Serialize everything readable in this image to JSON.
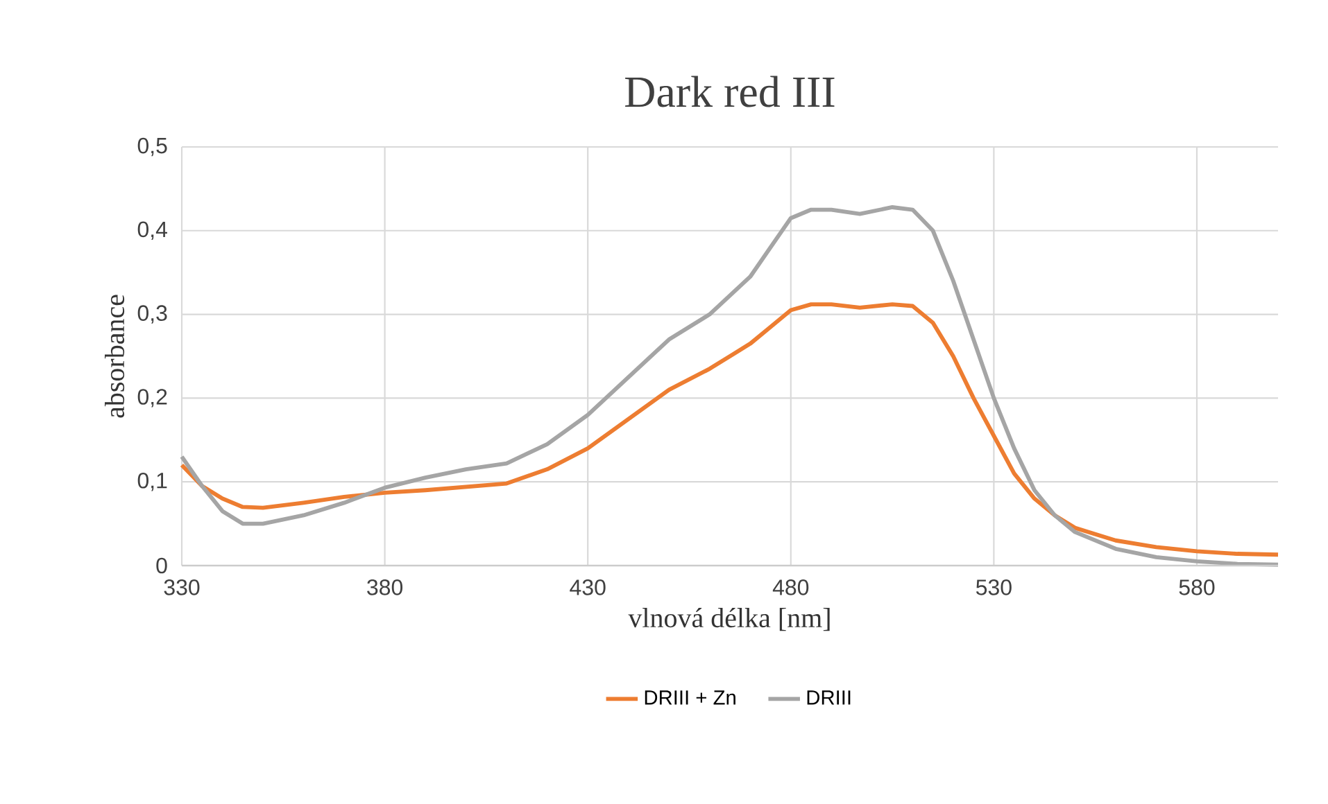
{
  "chart_data": {
    "type": "line",
    "title": "Dark  red  III",
    "xlabel": "vlnová délka [nm]",
    "ylabel": "absorbance",
    "x": [
      330,
      335,
      340,
      345,
      350,
      360,
      370,
      380,
      390,
      400,
      410,
      420,
      430,
      440,
      450,
      460,
      470,
      475,
      480,
      485,
      490,
      497,
      505,
      510,
      515,
      520,
      525,
      530,
      535,
      540,
      545,
      550,
      560,
      570,
      580,
      590,
      600
    ],
    "series": [
      {
        "name": "DRIII + Zn",
        "color": "#ed7d31",
        "values": [
          0.12,
          0.095,
          0.08,
          0.07,
          0.069,
          0.075,
          0.082,
          0.087,
          0.09,
          0.094,
          0.098,
          0.115,
          0.14,
          0.175,
          0.21,
          0.235,
          0.265,
          0.285,
          0.305,
          0.312,
          0.312,
          0.308,
          0.312,
          0.31,
          0.29,
          0.25,
          0.2,
          0.155,
          0.11,
          0.08,
          0.06,
          0.045,
          0.03,
          0.022,
          0.017,
          0.014,
          0.013
        ]
      },
      {
        "name": "DRIII",
        "color": "#a5a5a5",
        "values": [
          0.13,
          0.095,
          0.065,
          0.05,
          0.05,
          0.06,
          0.075,
          0.093,
          0.105,
          0.115,
          0.122,
          0.145,
          0.18,
          0.225,
          0.27,
          0.3,
          0.345,
          0.38,
          0.415,
          0.425,
          0.425,
          0.42,
          0.428,
          0.425,
          0.4,
          0.34,
          0.27,
          0.2,
          0.14,
          0.09,
          0.06,
          0.04,
          0.02,
          0.01,
          0.005,
          0.002,
          0.001
        ]
      }
    ],
    "xlim": [
      330,
      600
    ],
    "ylim": [
      0,
      0.5
    ],
    "xticks": [
      330,
      380,
      430,
      480,
      530,
      580
    ],
    "yticks": [
      0,
      {
        "value": 0.1,
        "label": "0,1"
      },
      {
        "value": 0.2,
        "label": "0,2"
      },
      {
        "value": 0.3,
        "label": "0,3"
      },
      {
        "value": 0.4,
        "label": "0,4"
      },
      {
        "value": 0.5,
        "label": "0,5"
      }
    ],
    "grid": true,
    "legend": "bottom",
    "marker": "none",
    "line_style": "solid"
  }
}
